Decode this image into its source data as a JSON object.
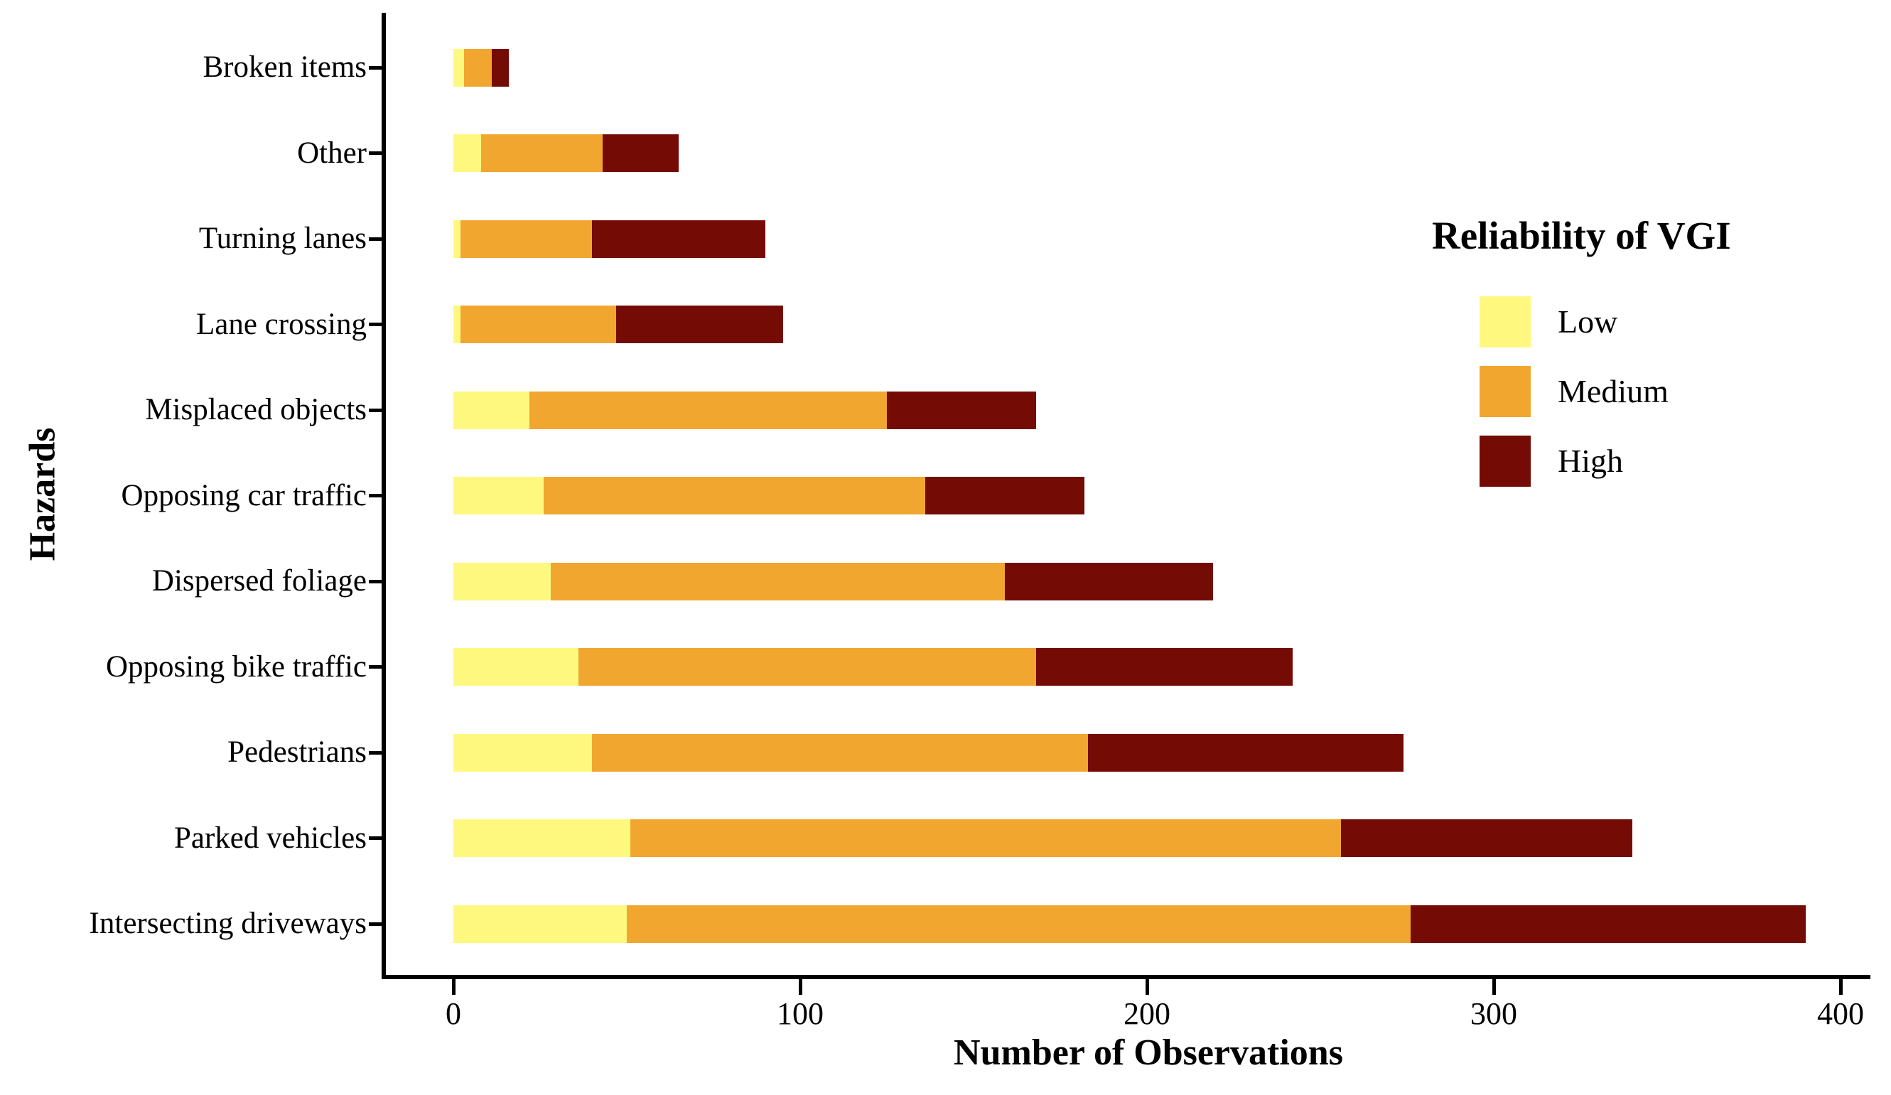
{
  "chart_data": {
    "type": "bar",
    "orientation": "horizontal",
    "stacked": true,
    "xlabel": "Number of Observations",
    "ylabel": "Hazards",
    "categories": [
      "Broken items",
      "Other",
      "Turning lanes",
      "Lane crossing",
      "Misplaced objects",
      "Opposing car traffic",
      "Dispersed foliage",
      "Opposing bike traffic",
      "Pedestrians",
      "Parked vehicles",
      "Intersecting driveways"
    ],
    "series": [
      {
        "name": "Low",
        "color": "#FEF87E",
        "values": [
          3,
          8,
          2,
          2,
          22,
          26,
          28,
          36,
          40,
          51,
          50
        ]
      },
      {
        "name": "Medium",
        "color": "#F0A62F",
        "values": [
          8,
          35,
          38,
          45,
          103,
          110,
          131,
          132,
          143,
          205,
          226
        ]
      },
      {
        "name": "High",
        "color": "#740B04",
        "values": [
          5,
          22,
          50,
          48,
          43,
          46,
          60,
          74,
          91,
          84,
          114
        ]
      }
    ],
    "totals": [
      16,
      65,
      90,
      95,
      168,
      182,
      219,
      242,
      274,
      340,
      390
    ],
    "x_ticks": [
      "0",
      "100",
      "200",
      "300",
      "400"
    ],
    "xlim": [
      0,
      400
    ],
    "grid": false,
    "legend": {
      "title": "Reliability of VGI",
      "position": "upper-right-inside"
    },
    "axis_color": "#000000",
    "text_color": "#000000",
    "background_color": "#ffffff"
  }
}
